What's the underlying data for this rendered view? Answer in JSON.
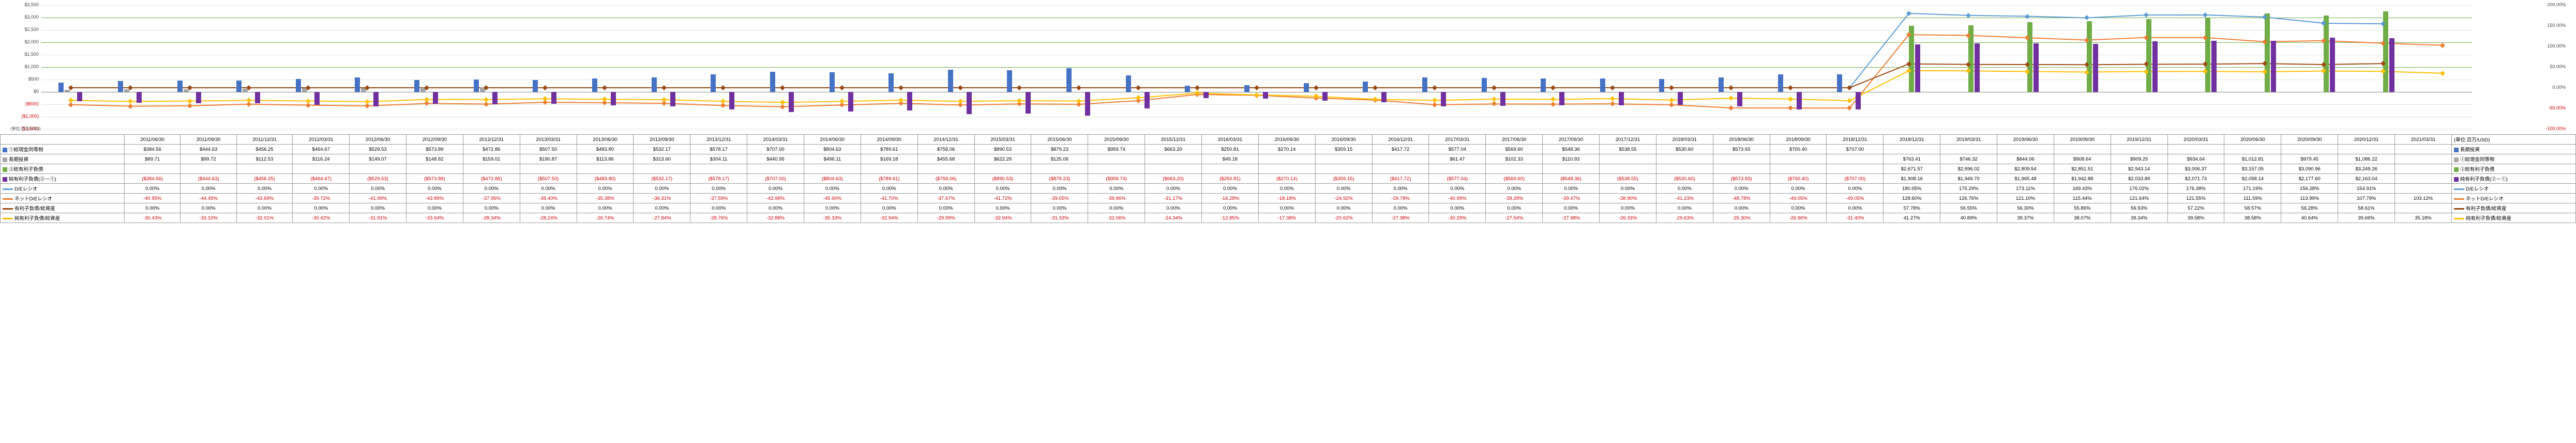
{
  "periods": [
    "2011/06/30",
    "2011/09/30",
    "2011/12/31",
    "2012/03/31",
    "2012/06/30",
    "2012/09/30",
    "2012/12/31",
    "2013/03/31",
    "2013/06/30",
    "2013/09/30",
    "2013/12/31",
    "2014/03/31",
    "2014/06/30",
    "2014/09/30",
    "2014/12/31",
    "2015/03/31",
    "2015/06/30",
    "2015/09/30",
    "2015/12/31",
    "2016/03/31",
    "2016/06/30",
    "2016/09/30",
    "2016/12/31",
    "2017/03/31",
    "2017/06/30",
    "2017/09/30",
    "2017/12/31",
    "2018/03/31",
    "2018/06/30",
    "2018/09/30",
    "2018/12/31",
    "2018/12/31",
    "2019/03/31",
    "2019/06/30",
    "2019/09/30",
    "2019/12/31",
    "2020/03/31",
    "2020/06/30",
    "2020/09/30",
    "2020/12/31",
    "2021/03/31"
  ],
  "series": [
    {
      "key": "cash",
      "label": "①総現金同等物",
      "type": "bar",
      "color": "#4472c4",
      "values": [
        384.56,
        444.63,
        456.25,
        464.67,
        529.53,
        573.89,
        472.86,
        507.5,
        483.8,
        532.17,
        578.17,
        707.0,
        804.63,
        789.61,
        758.06,
        890.53,
        879.23,
        959.74,
        663.2,
        250.81,
        270.14,
        359.15,
        417.72,
        577.04,
        569.6,
        548.36,
        538.55,
        530.6,
        573.93,
        700.4,
        707.0,
        null,
        null,
        null,
        null,
        null,
        null,
        null,
        null,
        null,
        null
      ]
    },
    {
      "key": "ltinv",
      "label": "長期投資",
      "type": "bar",
      "color": "#a5a5a5",
      "values": [
        89.71,
        99.72,
        112.53,
        116.24,
        149.07,
        148.82,
        159.01,
        190.87,
        null,
        null,
        null,
        null,
        null,
        null,
        null,
        null,
        null,
        null,
        null,
        null,
        null,
        null,
        null,
        null,
        null,
        null,
        null,
        null,
        null,
        null,
        null,
        null,
        null,
        null,
        null,
        null,
        null,
        null,
        null,
        null,
        null
      ]
    },
    {
      "key": "ibd",
      "label": "②総有利子負債",
      "type": "bar",
      "color": "#70ad47",
      "values": [
        null,
        null,
        null,
        null,
        null,
        null,
        null,
        null,
        null,
        null,
        null,
        null,
        null,
        null,
        null,
        null,
        null,
        null,
        null,
        null,
        null,
        null,
        null,
        null,
        null,
        null,
        null,
        null,
        null,
        null,
        null,
        2671.57,
        2696.02,
        2809.54,
        2851.51,
        2943.14,
        3006.37,
        3157.05,
        3090.96,
        3249.26,
        null
      ]
    },
    {
      "key": "net",
      "label": "純有利子負債(②－①)",
      "type": "bar",
      "color": "#7030a0",
      "values": [
        -384.56,
        -444.63,
        -456.25,
        -464.67,
        -529.53,
        -573.89,
        -472.86,
        -507.5,
        -483.8,
        -532.17,
        -578.17,
        -707.0,
        -804.63,
        -789.61,
        -758.06,
        -890.53,
        -879.23,
        -959.74,
        -663.2,
        -250.81,
        -270.14,
        -359.15,
        -417.72,
        -577.04,
        -569.6,
        -548.36,
        -538.55,
        -530.6,
        -573.93,
        -700.4,
        -707.0,
        1908.16,
        1949.7,
        1965.48,
        1942.88,
        2033.89,
        2071.73,
        2058.14,
        2177.6,
        2163.04,
        null
      ]
    },
    {
      "key": "de",
      "label": "D/Eレシオ",
      "type": "line",
      "color": "#5b9bd5",
      "marker": "diamond",
      "values": [
        0,
        0,
        0,
        0,
        0,
        0,
        0,
        0,
        0,
        0,
        0,
        0,
        0,
        0,
        0,
        0,
        0,
        0,
        0,
        0,
        0,
        0,
        0,
        0,
        0,
        0,
        0,
        0,
        0,
        0,
        0,
        180.05,
        175.29,
        173.11,
        169.43,
        176.02,
        176.38,
        171.19,
        156.28,
        154.91,
        null
      ]
    },
    {
      "key": "netde",
      "label": "ネットD/Eレシオ",
      "type": "line",
      "color": "#ed7d31",
      "marker": "diamond",
      "values": [
        -40.95,
        -44.49,
        -43.69,
        -39.72,
        -41.99,
        -43.89,
        -37.95,
        -39.4,
        -35.38,
        -36.31,
        -37.59,
        -42.98,
        -45.9,
        -41.7,
        -37.67,
        -41.72,
        -39.05,
        -39.96,
        -31.17,
        -16.28,
        -18.18,
        -24.92,
        -29.78,
        -40.99,
        -39.28,
        -39.47,
        -38.9,
        -41.23,
        -48.78,
        -49.05,
        -49.05,
        128.6,
        126.76,
        121.1,
        115.44,
        121.64,
        121.55,
        111.59,
        113.99,
        107.79,
        103.12
      ]
    },
    {
      "key": "ibd_ta",
      "label": "有利子負債/総資産",
      "type": "line",
      "color": "#9e480e",
      "marker": "diamond",
      "values": [
        0,
        0,
        0,
        0,
        0,
        0,
        0,
        0,
        0,
        0,
        0,
        0,
        0,
        0,
        0,
        0,
        0,
        0,
        0,
        0,
        0,
        0,
        0,
        0,
        0,
        0,
        0,
        0,
        0,
        0,
        0,
        57.78,
        56.55,
        56.3,
        55.86,
        56.93,
        57.22,
        58.57,
        56.28,
        58.61,
        null
      ]
    },
    {
      "key": "net_ta",
      "label": "純有利子負債/総資産",
      "type": "line",
      "color": "#ffc000",
      "marker": "diamond",
      "values": [
        -30.43,
        -33.1,
        -32.01,
        -30.42,
        -31.91,
        -33.64,
        -28.34,
        -28.24,
        -26.74,
        -27.84,
        -28.76,
        -32.88,
        -35.33,
        -32.94,
        -29.99,
        -32.94,
        -31.33,
        -32.06,
        -24.34,
        -12.85,
        -17.38,
        -20.62,
        -27.98,
        -30.29,
        -27.54,
        -27.98,
        -26.33,
        -29.63,
        -25.3,
        -26.96,
        -31.4,
        41.27,
        40.89,
        39.37,
        38.07,
        39.34,
        39.58,
        38.58,
        40.64,
        39.66,
        35.18
      ]
    }
  ],
  "axis": {
    "left": {
      "min": -1500,
      "max": 3500,
      "step": 500,
      "label": "(単位:百万/USD)"
    },
    "right": {
      "min": -100,
      "max": 200,
      "step": 50
    }
  },
  "grid_color": "#d9ead3",
  "hl_grid": "#70ad47",
  "right_labels": [
    "長期投資",
    "①総現金同等物",
    "②総有利子負債",
    "純有利子負債(②－①)",
    "D/Eレシオ",
    "ネットD/Eレシオ",
    "有利子負債/総資産",
    "純有利子負債/総資産"
  ],
  "fmt": {
    "cash": [
      "$384.56",
      "$444.63",
      "$456.25",
      "$464.67",
      "$529.53",
      "$573.89",
      "$472.86",
      "$507.50",
      "$483.80",
      "$532.17",
      "$578.17",
      "$707.00",
      "$804.63",
      "$789.61",
      "$758.06",
      "$890.53",
      "$879.23",
      "$959.74",
      "$663.20",
      "$250.81",
      "$270.14",
      "$359.15",
      "$417.72",
      "$577.04",
      "$569.60",
      "$548.36",
      "$538.55",
      "$530.60",
      "$573.93",
      "$700.40",
      "$707.00",
      "",
      "",
      "",
      "",
      "",
      "",
      "",
      "",
      "",
      ""
    ],
    "ltinv": [
      "$89.71",
      "$99.72",
      "$112.53",
      "$116.24",
      "$149.07",
      "$148.82",
      "$159.01",
      "$190.87",
      "$113.86",
      "$313.60",
      "$304.11",
      "$440.95",
      "$496.11",
      "$169.18",
      "$455.68",
      "$622.29",
      "$125.06",
      "",
      "",
      "$49.18",
      "",
      "",
      "",
      "$61.47",
      "$102.33",
      "$110.93",
      "",
      "",
      "",
      "",
      "",
      "$763.41",
      "$746.32",
      "$844.06",
      "$908.64",
      "$909.25",
      "$934.64",
      "$1,012.81",
      "$979.45",
      "$1,086.22",
      ""
    ],
    "ibd": [
      "",
      "",
      "",
      "",
      "",
      "",
      "",
      "",
      "",
      "",
      "",
      "",
      "",
      "",
      "",
      "",
      "",
      "",
      "",
      "",
      "",
      "",
      "",
      "",
      "",
      "",
      "",
      "",
      "",
      "",
      "",
      "$2,671.57",
      "$2,696.02",
      "$2,809.54",
      "$2,851.51",
      "$2,943.14",
      "$3,006.37",
      "$3,157.05",
      "$3,090.96",
      "$3,249.26",
      ""
    ],
    "net": [
      "($384.56)",
      "($444.63)",
      "($456.25)",
      "($464.67)",
      "($529.53)",
      "($573.89)",
      "($472.86)",
      "($507.50)",
      "($483.80)",
      "($532.17)",
      "($578.17)",
      "($707.00)",
      "($804.63)",
      "($789.61)",
      "($758.06)",
      "($890.53)",
      "($879.23)",
      "($959.74)",
      "($663.20)",
      "($250.81)",
      "($270.14)",
      "($359.15)",
      "($417.72)",
      "($577.04)",
      "($569.60)",
      "($548.36)",
      "($538.55)",
      "($530.60)",
      "($573.93)",
      "($700.40)",
      "($707.00)",
      "$1,908.16",
      "$1,949.70",
      "$1,965.48",
      "$1,942.88",
      "$2,033.89",
      "$2,071.73",
      "$2,058.14",
      "$2,177.60",
      "$2,163.04",
      ""
    ],
    "de": [
      "0.00%",
      "0.00%",
      "0.00%",
      "0.00%",
      "0.00%",
      "0.00%",
      "0.00%",
      "0.00%",
      "0.00%",
      "0.00%",
      "0.00%",
      "0.00%",
      "0.00%",
      "0.00%",
      "0.00%",
      "0.00%",
      "0.00%",
      "0.00%",
      "0.00%",
      "0.00%",
      "0.00%",
      "0.00%",
      "0.00%",
      "0.00%",
      "0.00%",
      "0.00%",
      "0.00%",
      "0.00%",
      "0.00%",
      "0.00%",
      "0.00%",
      "180.05%",
      "175.29%",
      "173.11%",
      "169.43%",
      "176.02%",
      "176.38%",
      "171.19%",
      "156.28%",
      "154.91%",
      ""
    ],
    "netde": [
      "-40.95%",
      "-44.49%",
      "-43.69%",
      "-39.72%",
      "-41.99%",
      "-43.89%",
      "-37.95%",
      "-39.40%",
      "-35.38%",
      "-36.31%",
      "-37.59%",
      "-42.98%",
      "-45.90%",
      "-41.70%",
      "-37.67%",
      "-41.72%",
      "-39.05%",
      "-39.96%",
      "-31.17%",
      "-16.28%",
      "-18.18%",
      "-24.92%",
      "-29.78%",
      "-40.99%",
      "-39.28%",
      "-39.47%",
      "-38.90%",
      "-41.23%",
      "-48.78%",
      "-49.05%",
      "-49.05%",
      "128.60%",
      "126.76%",
      "121.10%",
      "115.44%",
      "121.64%",
      "121.55%",
      "111.59%",
      "113.99%",
      "107.79%",
      "103.12%"
    ],
    "ibd_ta": [
      "0.00%",
      "0.00%",
      "0.00%",
      "0.00%",
      "0.00%",
      "0.00%",
      "0.00%",
      "0.00%",
      "0.00%",
      "0.00%",
      "0.00%",
      "0.00%",
      "0.00%",
      "0.00%",
      "0.00%",
      "0.00%",
      "0.00%",
      "0.00%",
      "0.00%",
      "0.00%",
      "0.00%",
      "0.00%",
      "0.00%",
      "0.00%",
      "0.00%",
      "0.00%",
      "0.00%",
      "0.00%",
      "0.00%",
      "0.00%",
      "0.00%",
      "57.78%",
      "56.55%",
      "56.30%",
      "55.86%",
      "56.93%",
      "57.22%",
      "58.57%",
      "56.28%",
      "58.61%",
      ""
    ],
    "net_ta": [
      "-30.43%",
      "-33.10%",
      "-32.01%",
      "-30.42%",
      "-31.91%",
      "-33.64%",
      "-28.34%",
      "-28.24%",
      "-26.74%",
      "-27.84%",
      "-28.76%",
      "-32.88%",
      "-35.33%",
      "-32.94%",
      "-29.99%",
      "-32.94%",
      "-31.33%",
      "-32.06%",
      "-24.34%",
      "-12.85%",
      "-17.38%",
      "-20.62%",
      "-27.98%",
      "-30.29%",
      "-27.54%",
      "-27.98%",
      "-26.33%",
      "-29.63%",
      "-25.30%",
      "-26.96%",
      "-31.40%",
      "41.27%",
      "40.89%",
      "39.37%",
      "38.07%",
      "39.34%",
      "39.58%",
      "38.58%",
      "40.64%",
      "39.66%",
      "35.18%"
    ]
  }
}
